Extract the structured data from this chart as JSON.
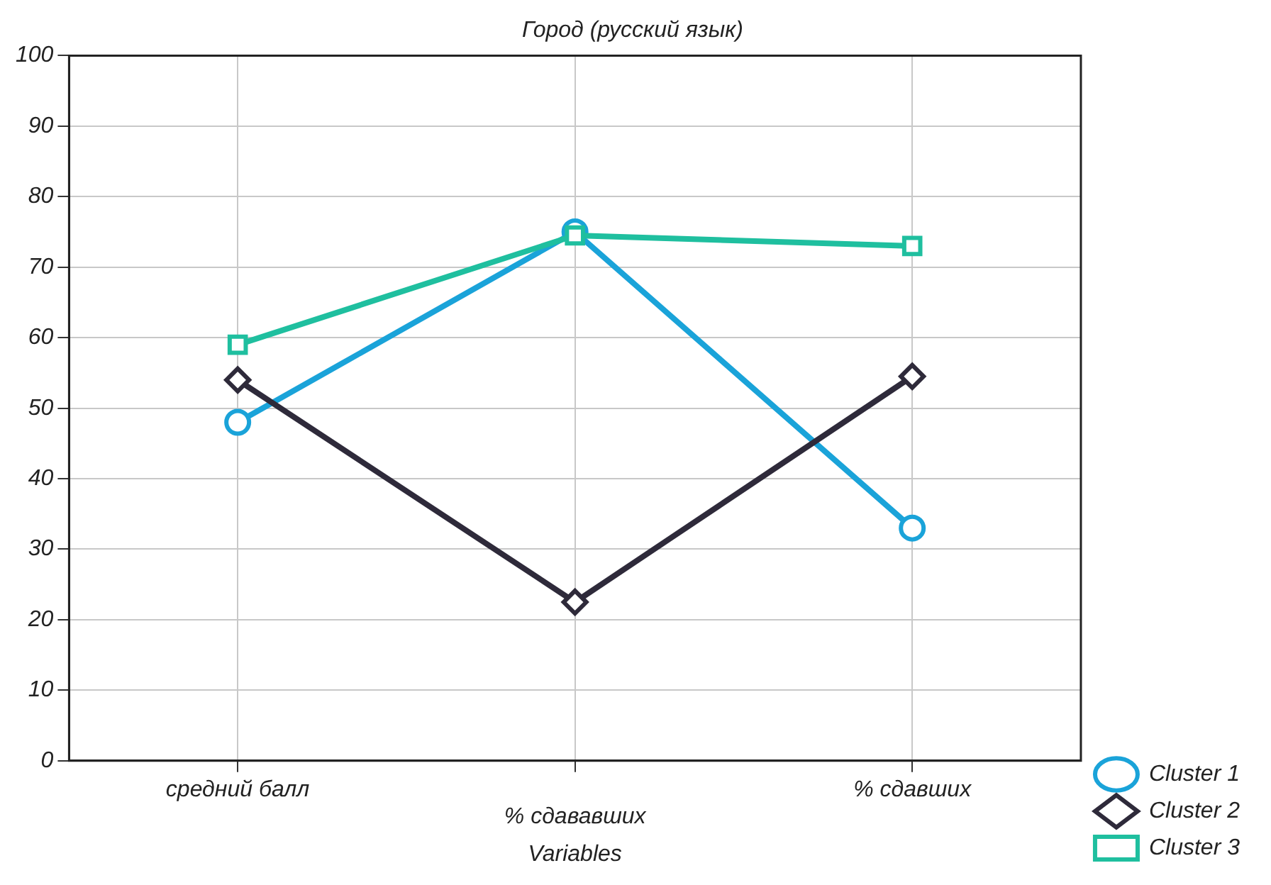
{
  "chart_data": {
    "type": "line",
    "title": "Город (русский язык)",
    "xlabel": "Variables",
    "categories": [
      "средний балл",
      "% сдававших",
      "% сдавших"
    ],
    "series": [
      {
        "name": "Cluster 1",
        "color": "#1aa3d9",
        "values": [
          48,
          75,
          33
        ],
        "marker": "circle"
      },
      {
        "name": "Cluster 2",
        "color": "#2e2a3a",
        "values": [
          54,
          22.5,
          54.5
        ],
        "marker": "diamond"
      },
      {
        "name": "Cluster 3",
        "color": "#1fbf9f",
        "values": [
          59,
          74.5,
          73
        ],
        "marker": "square"
      }
    ],
    "ylim": [
      0,
      100
    ],
    "yticks": [
      0,
      10,
      20,
      30,
      40,
      50,
      60,
      70,
      80,
      90,
      100
    ],
    "grid": true,
    "legend": "bottom right",
    "line_style": "solid"
  }
}
